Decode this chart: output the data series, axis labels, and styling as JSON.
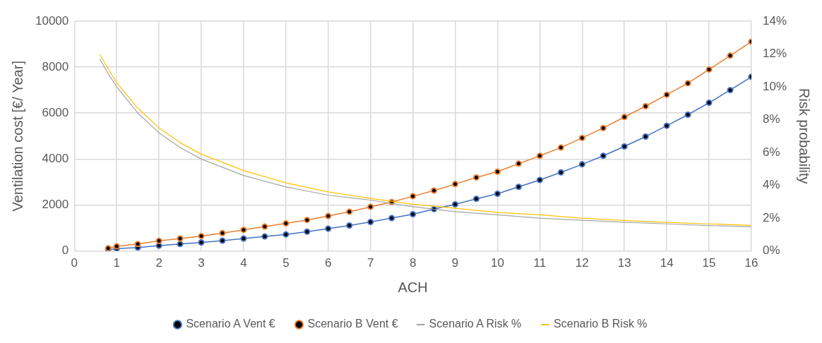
{
  "chart_data": {
    "type": "line",
    "xlabel": "ACH",
    "ylabel": "Ventilation cost [€/ Year]",
    "y2label": "Risk probability",
    "xlim": [
      0,
      16
    ],
    "xticks": [
      0,
      1,
      2,
      3,
      4,
      5,
      6,
      7,
      8,
      9,
      10,
      11,
      12,
      13,
      14,
      15,
      16
    ],
    "ylim": [
      0,
      10000
    ],
    "yticks": [
      0,
      2000,
      4000,
      6000,
      8000,
      10000
    ],
    "y2lim": [
      0,
      14
    ],
    "y2ticks": [
      {
        "value": 0,
        "label": "0%"
      },
      {
        "value": 2,
        "label": "2%"
      },
      {
        "value": 4,
        "label": "4%"
      },
      {
        "value": 6,
        "label": "6%"
      },
      {
        "value": 8,
        "label": "8%"
      },
      {
        "value": 10,
        "label": "10%"
      },
      {
        "value": 12,
        "label": "12%"
      },
      {
        "value": 14,
        "label": "14%"
      }
    ],
    "grid": true,
    "legend": "bottom",
    "series": [
      {
        "name": "Scenario A Vent €",
        "color": "#4472c4",
        "marker": "circle",
        "x": [
          0.8,
          1,
          1.5,
          2,
          2.5,
          3,
          3.5,
          4,
          4.5,
          5,
          5.5,
          6,
          6.5,
          7,
          7.5,
          8,
          8.5,
          9,
          9.5,
          10,
          10.5,
          11,
          11.5,
          12,
          12.5,
          13,
          13.5,
          14,
          14.5,
          15,
          15.5,
          16
        ],
        "values": [
          60,
          100,
          150,
          230,
          300,
          370,
          450,
          540,
          630,
          720,
          840,
          970,
          1110,
          1260,
          1430,
          1600,
          1820,
          2030,
          2270,
          2490,
          2790,
          3090,
          3420,
          3770,
          4140,
          4550,
          4980,
          5450,
          5930,
          6450,
          7000,
          7580
        ]
      },
      {
        "name": "Scenario B Vent €",
        "color": "#ed7d31",
        "marker": "circle",
        "x": [
          0.8,
          1,
          1.5,
          2,
          2.5,
          3,
          3.5,
          4,
          4.5,
          5,
          5.5,
          6,
          6.5,
          7,
          7.5,
          8,
          8.5,
          9,
          9.5,
          10,
          10.5,
          11,
          11.5,
          12,
          12.5,
          13,
          13.5,
          14,
          14.5,
          15,
          15.5,
          16
        ],
        "values": [
          120,
          200,
          300,
          440,
          540,
          650,
          780,
          920,
          1060,
          1200,
          1350,
          1520,
          1710,
          1920,
          2130,
          2380,
          2630,
          2910,
          3200,
          3450,
          3800,
          4140,
          4500,
          4920,
          5350,
          5830,
          6300,
          6800,
          7300,
          7900,
          8500,
          9110
        ]
      },
      {
        "name": "Scenario A Risk %",
        "color": "#a5a5a5",
        "marker": "none",
        "axis": "y2",
        "x": [
          0.6,
          0.8,
          1,
          1.5,
          2,
          2.5,
          3,
          4,
          5,
          6,
          7,
          8,
          9,
          10,
          11,
          12,
          13,
          14,
          15,
          16
        ],
        "values": [
          11.7,
          10.8,
          10.0,
          8.4,
          7.2,
          6.3,
          5.6,
          4.6,
          3.9,
          3.4,
          3.1,
          2.7,
          2.4,
          2.2,
          2.0,
          1.87,
          1.75,
          1.65,
          1.55,
          1.47
        ]
      },
      {
        "name": "Scenario B Risk %",
        "color": "#ffc000",
        "marker": "none",
        "axis": "y2",
        "x": [
          0.6,
          0.8,
          1,
          1.5,
          2,
          2.5,
          3,
          4,
          5,
          6,
          7,
          8,
          9,
          10,
          11,
          12,
          13,
          14,
          15,
          16
        ],
        "values": [
          12.0,
          11.1,
          10.25,
          8.7,
          7.5,
          6.6,
          5.9,
          4.9,
          4.15,
          3.6,
          3.2,
          2.85,
          2.6,
          2.35,
          2.2,
          2.0,
          1.86,
          1.74,
          1.65,
          1.56
        ]
      }
    ]
  }
}
